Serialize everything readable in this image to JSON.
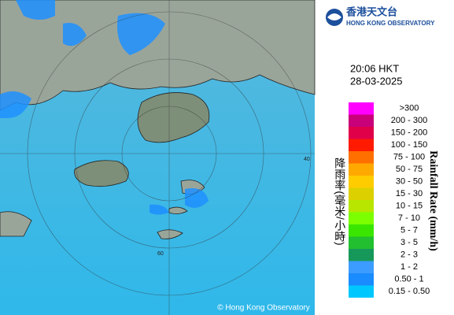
{
  "logo": {
    "chinese": "香港天文台",
    "english": "HONG KONG OBSERVATORY"
  },
  "time": "20:06 HKT",
  "date": "28-03-2025",
  "legend": {
    "title_chinese": "降雨率(毫米/小時)",
    "title_english": "Rainfall Rate (mm/h)",
    "items": [
      {
        "label": ">300",
        "color": "#ff00ff"
      },
      {
        "label": "200 - 300",
        "color": "#c8007a"
      },
      {
        "label": "150 - 200",
        "color": "#e0004a"
      },
      {
        "label": "100 - 150",
        "color": "#ff1a00"
      },
      {
        "label": "75 - 100",
        "color": "#ff7000"
      },
      {
        "label": "50 - 75",
        "color": "#ffa800"
      },
      {
        "label": "30 - 50",
        "color": "#ffcc00"
      },
      {
        "label": "15 - 30",
        "color": "#dcd000"
      },
      {
        "label": "10 - 15",
        "color": "#b8e600"
      },
      {
        "label": "7 - 10",
        "color": "#7cff00"
      },
      {
        "label": "5 - 7",
        "color": "#3ae600"
      },
      {
        "label": "3 - 5",
        "color": "#22c030"
      },
      {
        "label": "2 - 3",
        "color": "#16985a"
      },
      {
        "label": "1 - 2",
        "color": "#3c9cff"
      },
      {
        "label": "0.50 - 1",
        "color": "#1a8cff"
      },
      {
        "label": "0.15 - 0.50",
        "color": "#00c8ff"
      }
    ]
  },
  "copyright": "© Hong Kong Observatory",
  "ring_labels": [
    "40",
    "60"
  ]
}
